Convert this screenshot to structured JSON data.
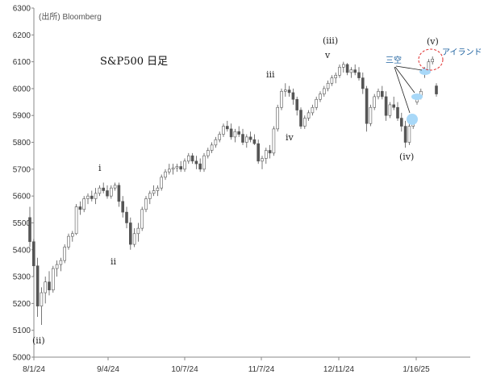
{
  "source": "(出所) Bloomberg",
  "chart_data": {
    "type": "candlestick",
    "title": "S&P500 日足",
    "y_ticks": [
      "5000",
      "5100",
      "5200",
      "5300",
      "5400",
      "5500",
      "5600",
      "5700",
      "5800",
      "5900",
      "6000",
      "6100",
      "6200",
      "6300"
    ],
    "ylim": [
      5000,
      6300
    ],
    "x_ticks": [
      "8/1/24",
      "9/4/24",
      "10/7/24",
      "11/7/24",
      "12/11/24",
      "1/16/25"
    ],
    "grid": false,
    "candles": [
      [
        5520,
        5560,
        5410,
        5430
      ],
      [
        5430,
        5440,
        5300,
        5340
      ],
      [
        5340,
        5370,
        5150,
        5190
      ],
      [
        5190,
        5260,
        5120,
        5240
      ],
      [
        5240,
        5300,
        5200,
        5280
      ],
      [
        5280,
        5320,
        5230,
        5250
      ],
      [
        5250,
        5340,
        5240,
        5330
      ],
      [
        5330,
        5360,
        5300,
        5345
      ],
      [
        5345,
        5370,
        5320,
        5360
      ],
      [
        5360,
        5420,
        5350,
        5410
      ],
      [
        5410,
        5460,
        5400,
        5450
      ],
      [
        5450,
        5470,
        5430,
        5460
      ],
      [
        5460,
        5570,
        5455,
        5560
      ],
      [
        5560,
        5580,
        5530,
        5550
      ],
      [
        5550,
        5600,
        5540,
        5590
      ],
      [
        5590,
        5610,
        5570,
        5600
      ],
      [
        5600,
        5620,
        5580,
        5590
      ],
      [
        5590,
        5630,
        5570,
        5610
      ],
      [
        5610,
        5640,
        5600,
        5630
      ],
      [
        5630,
        5650,
        5610,
        5620
      ],
      [
        5620,
        5640,
        5590,
        5600
      ],
      [
        5600,
        5640,
        5590,
        5630
      ],
      [
        5630,
        5650,
        5620,
        5640
      ],
      [
        5640,
        5650,
        5560,
        5580
      ],
      [
        5580,
        5600,
        5520,
        5540
      ],
      [
        5540,
        5560,
        5480,
        5500
      ],
      [
        5500,
        5520,
        5400,
        5420
      ],
      [
        5420,
        5480,
        5410,
        5460
      ],
      [
        5460,
        5500,
        5430,
        5480
      ],
      [
        5480,
        5560,
        5470,
        5550
      ],
      [
        5550,
        5600,
        5540,
        5590
      ],
      [
        5590,
        5620,
        5570,
        5610
      ],
      [
        5610,
        5640,
        5600,
        5620
      ],
      [
        5620,
        5640,
        5600,
        5630
      ],
      [
        5630,
        5680,
        5620,
        5670
      ],
      [
        5670,
        5700,
        5660,
        5690
      ],
      [
        5690,
        5720,
        5680,
        5700
      ],
      [
        5700,
        5720,
        5680,
        5705
      ],
      [
        5705,
        5720,
        5690,
        5710
      ],
      [
        5710,
        5730,
        5690,
        5700
      ],
      [
        5700,
        5740,
        5690,
        5730
      ],
      [
        5730,
        5760,
        5720,
        5750
      ],
      [
        5750,
        5760,
        5720,
        5730
      ],
      [
        5730,
        5750,
        5700,
        5720
      ],
      [
        5720,
        5740,
        5690,
        5700
      ],
      [
        5700,
        5760,
        5690,
        5750
      ],
      [
        5750,
        5780,
        5740,
        5770
      ],
      [
        5770,
        5800,
        5760,
        5790
      ],
      [
        5790,
        5820,
        5780,
        5810
      ],
      [
        5810,
        5840,
        5800,
        5830
      ],
      [
        5830,
        5870,
        5820,
        5860
      ],
      [
        5860,
        5880,
        5840,
        5850
      ],
      [
        5850,
        5870,
        5810,
        5820
      ],
      [
        5820,
        5850,
        5800,
        5840
      ],
      [
        5840,
        5860,
        5820,
        5830
      ],
      [
        5830,
        5850,
        5790,
        5800
      ],
      [
        5800,
        5830,
        5780,
        5820
      ],
      [
        5820,
        5840,
        5800,
        5810
      ],
      [
        5810,
        5830,
        5790,
        5795
      ],
      [
        5795,
        5810,
        5720,
        5730
      ],
      [
        5730,
        5750,
        5700,
        5740
      ],
      [
        5740,
        5780,
        5720,
        5770
      ],
      [
        5770,
        5790,
        5740,
        5760
      ],
      [
        5760,
        5860,
        5750,
        5850
      ],
      [
        5850,
        5940,
        5840,
        5930
      ],
      [
        5930,
        6000,
        5920,
        5990
      ],
      [
        5990,
        6020,
        5970,
        5995
      ],
      [
        5995,
        6010,
        5970,
        5985
      ],
      [
        5985,
        6000,
        5940,
        5960
      ],
      [
        5960,
        5970,
        5900,
        5920
      ],
      [
        5920,
        5930,
        5850,
        5860
      ],
      [
        5860,
        5900,
        5850,
        5890
      ],
      [
        5890,
        5920,
        5880,
        5910
      ],
      [
        5910,
        5940,
        5900,
        5930
      ],
      [
        5930,
        5970,
        5920,
        5960
      ],
      [
        5960,
        5990,
        5950,
        5980
      ],
      [
        5980,
        6010,
        5970,
        6000
      ],
      [
        6000,
        6030,
        5990,
        6020
      ],
      [
        6020,
        6050,
        6010,
        6040
      ],
      [
        6040,
        6060,
        6020,
        6050
      ],
      [
        6050,
        6090,
        6040,
        6080
      ],
      [
        6080,
        6100,
        6060,
        6090
      ],
      [
        6090,
        6095,
        6050,
        6060
      ],
      [
        6060,
        6080,
        6040,
        6070
      ],
      [
        6070,
        6090,
        6050,
        6060
      ],
      [
        6060,
        6080,
        6030,
        6040
      ],
      [
        6040,
        6060,
        5980,
        6000
      ],
      [
        6000,
        6010,
        5840,
        5870
      ],
      [
        5870,
        5940,
        5860,
        5930
      ],
      [
        5930,
        5980,
        5920,
        5970
      ],
      [
        5970,
        6000,
        5960,
        5990
      ],
      [
        5990,
        6010,
        5960,
        5970
      ],
      [
        5970,
        5990,
        5880,
        5900
      ],
      [
        5900,
        5950,
        5890,
        5940
      ],
      [
        5940,
        5970,
        5920,
        5930
      ],
      [
        5930,
        5950,
        5880,
        5890
      ],
      [
        5890,
        5910,
        5840,
        5860
      ],
      [
        5860,
        5880,
        5780,
        5800
      ],
      [
        5800,
        5870,
        5790,
        5860
      ],
      [
        5860,
        5900,
        5850,
        5880
      ],
      [
        5950,
        5980,
        5940,
        5970
      ],
      [
        5970,
        6000,
        5960,
        5990
      ],
      [
        6060,
        6080,
        6040,
        6070
      ],
      [
        6070,
        6110,
        6060,
        6100
      ],
      [
        6100,
        6120,
        6090,
        6110
      ],
      [
        6010,
        6020,
        5970,
        5980
      ]
    ],
    "annotations": {
      "wave_labels": [
        "(ⅱ)",
        "ⅰ",
        "ⅱ",
        "ⅲ",
        "ⅳ",
        "ⅴ",
        "(ⅲ)",
        "(ⅳ)",
        "(ⅴ)"
      ],
      "callouts": [
        "三空",
        "アイランド"
      ]
    }
  }
}
